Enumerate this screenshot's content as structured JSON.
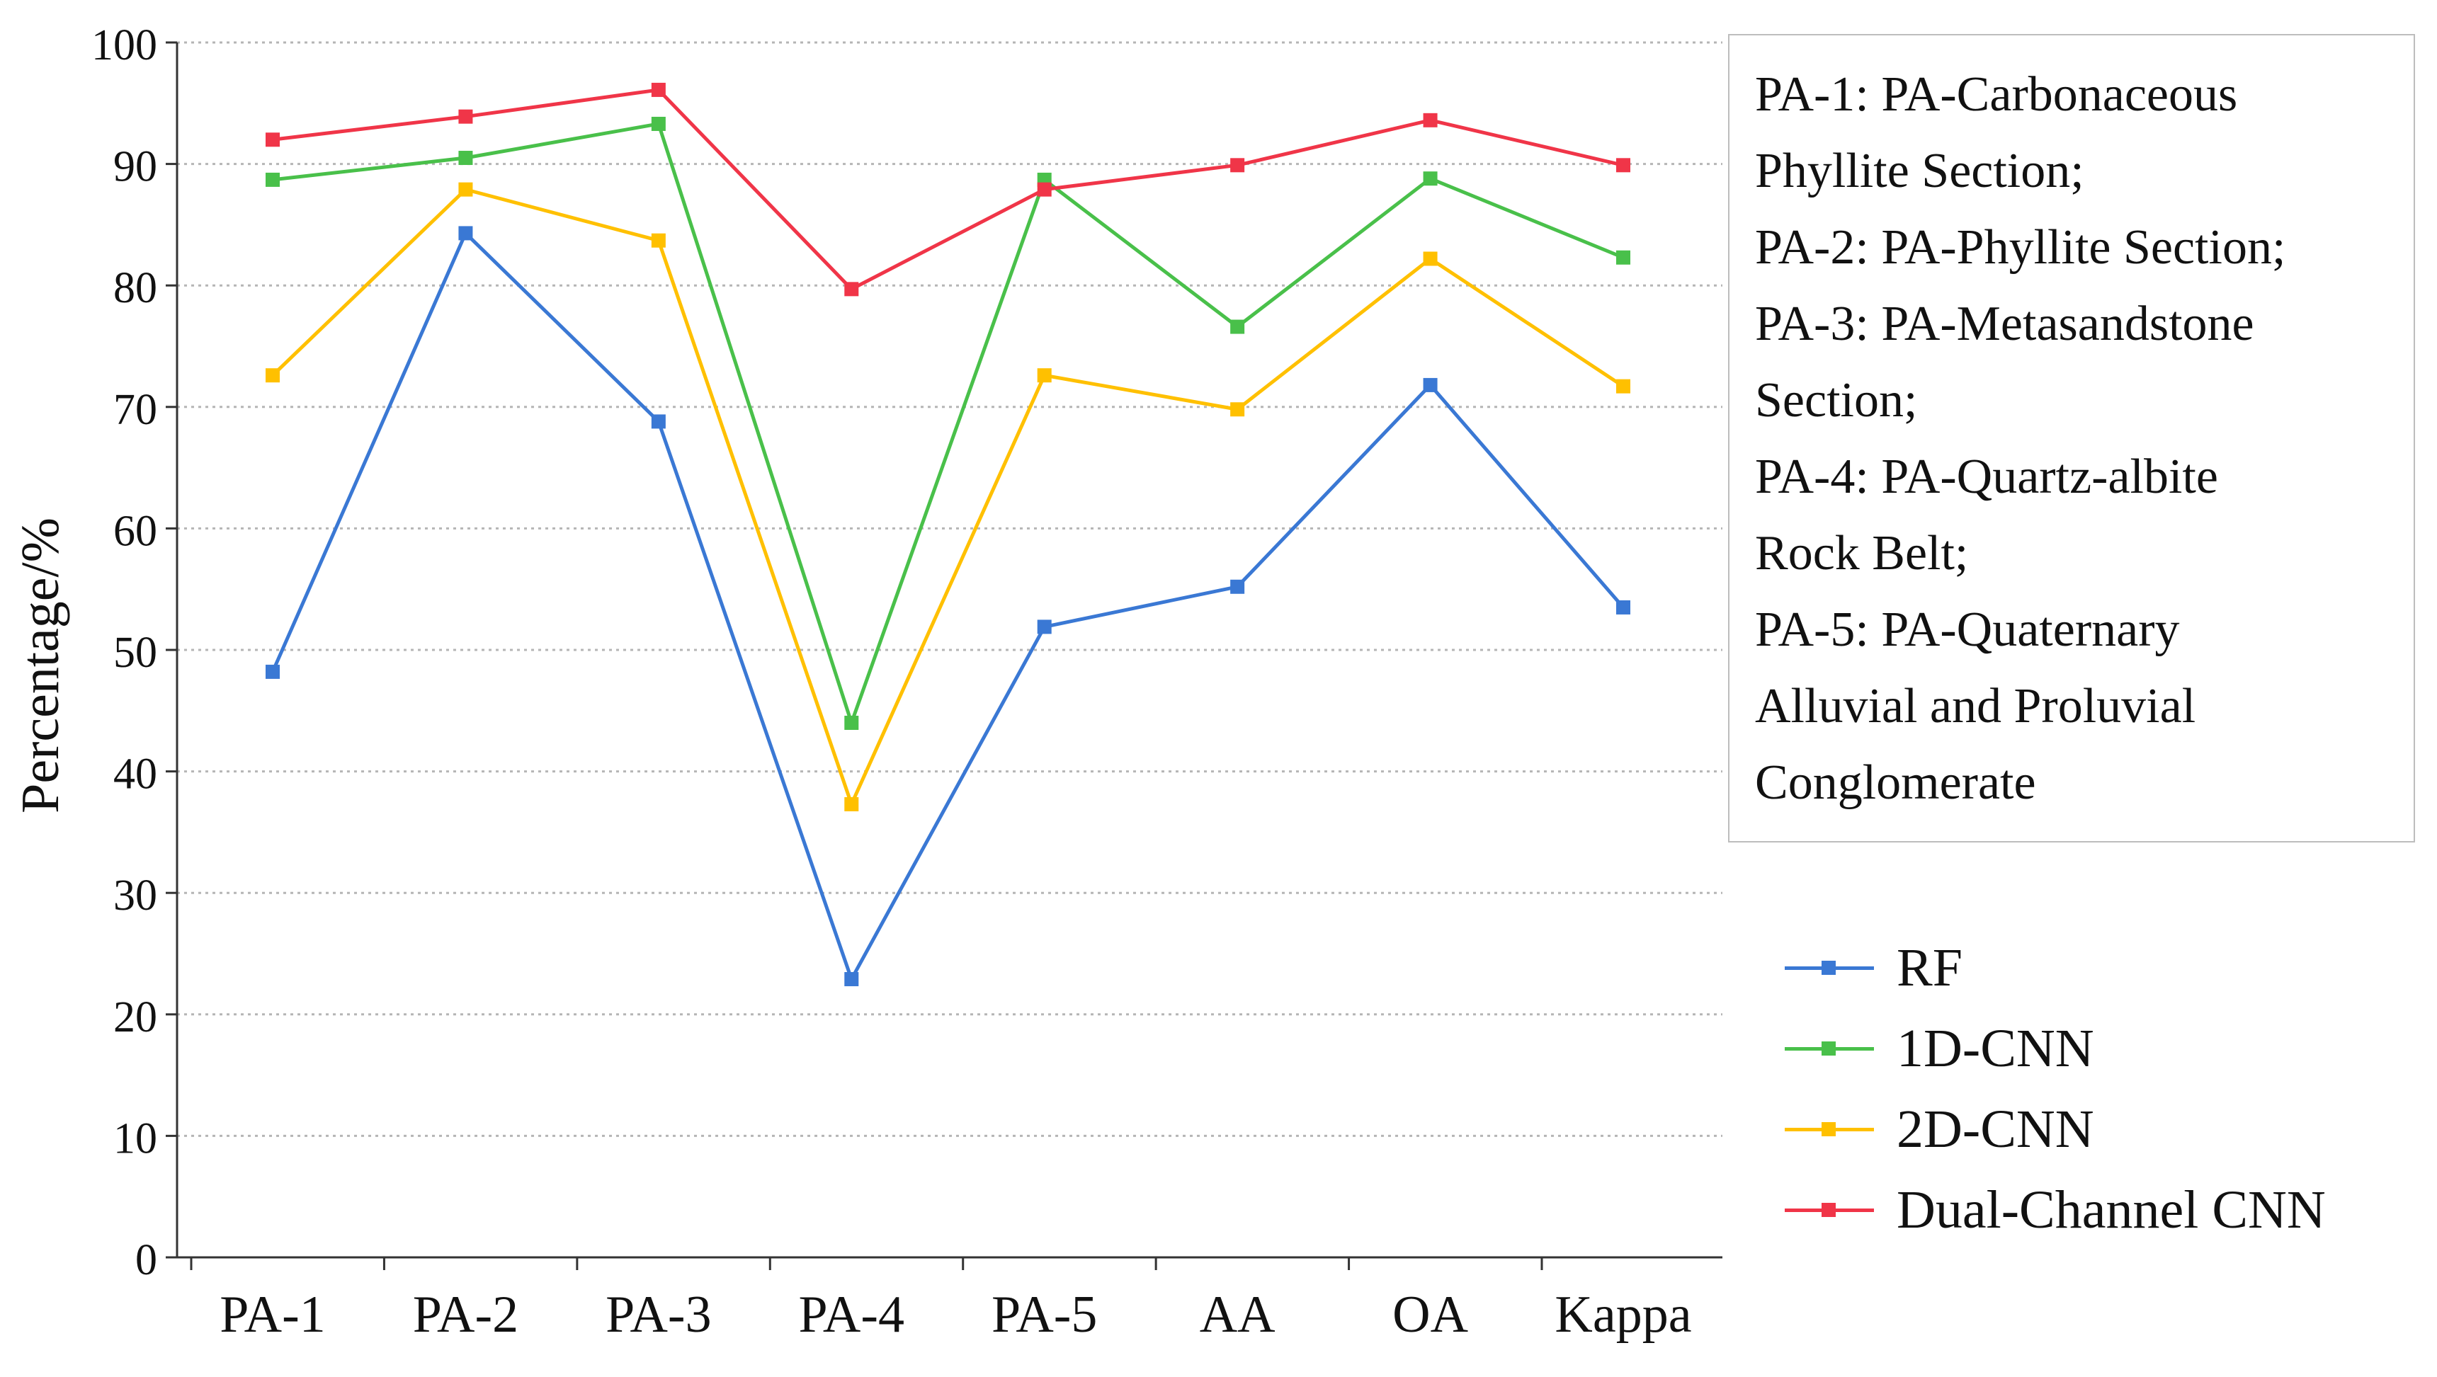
{
  "chart_data": {
    "type": "line",
    "title": "",
    "xlabel": "",
    "ylabel": "Percentage/%",
    "ylim": [
      0,
      100
    ],
    "yticks": [
      0,
      10,
      20,
      30,
      40,
      50,
      60,
      70,
      80,
      90,
      100
    ],
    "grid": "horizontal dotted",
    "categories": [
      "PA-1",
      "PA-2",
      "PA-3",
      "PA-4",
      "PA-5",
      "AA",
      "OA",
      "Kappa"
    ],
    "series": [
      {
        "name": "RF",
        "color": "#3a78d4",
        "values": [
          48.2,
          84.3,
          68.8,
          22.9,
          51.9,
          55.2,
          71.8,
          53.5
        ]
      },
      {
        "name": "1D-CNN",
        "color": "#49c04a",
        "values": [
          88.7,
          90.5,
          93.3,
          44.0,
          88.7,
          76.6,
          88.8,
          82.3
        ]
      },
      {
        "name": "2D-CNN",
        "color": "#ffc000",
        "values": [
          72.6,
          87.9,
          83.7,
          37.3,
          72.6,
          69.8,
          82.2,
          71.7
        ]
      },
      {
        "name": "Dual-Channel CNN",
        "color": "#f03548",
        "values": [
          92.0,
          93.9,
          96.1,
          79.7,
          87.9,
          89.9,
          93.6,
          89.9
        ]
      }
    ],
    "legend_position": "right",
    "annotation": [
      "PA-1: PA-Carbonaceous",
      "Phyllite Section;",
      "PA-2: PA-Phyllite Section;",
      "PA-3: PA-Metasandstone",
      "Section;",
      "PA-4: PA-Quartz-albite",
      "Rock Belt;",
      "PA-5: PA-Quaternary",
      "Alluvial and Proluvial",
      "Conglomerate"
    ]
  }
}
